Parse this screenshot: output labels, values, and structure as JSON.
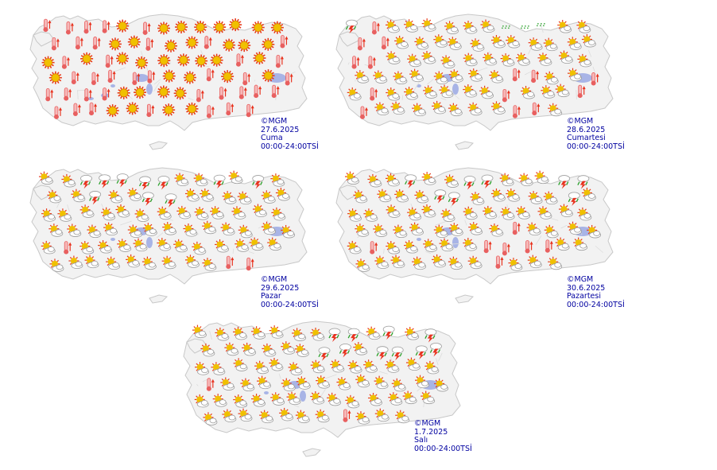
{
  "maps": [
    {
      "copyright": "©MGM",
      "date": "27.6.2025",
      "day": "Cuma",
      "period": "00:00-24:00TSİ",
      "weather_mix": "hot-sunny"
    },
    {
      "copyright": "©MGM",
      "date": "28.6.2025",
      "day": "Cumartesi",
      "period": "00:00-24:00TSİ",
      "weather_mix": "partly-cloudy-hot-storms-west"
    },
    {
      "copyright": "©MGM",
      "date": "29.6.2025",
      "day": "Pazar",
      "period": "00:00-24:00TSİ",
      "weather_mix": "storms-central-partly-cloudy"
    },
    {
      "copyright": "©MGM",
      "date": "30.6.2025",
      "day": "Pazartesi",
      "period": "00:00-24:00TSİ",
      "weather_mix": "partly-cloudy-storms-north"
    },
    {
      "copyright": "©MGM",
      "date": "1.7.2025",
      "day": "Salı",
      "period": "00:00-24:00TSİ",
      "weather_mix": "partly-cloudy-storms-northeast"
    }
  ],
  "icon_names": [
    "sun-icon",
    "partly-cloudy-icon",
    "thermometer-hot-icon",
    "thunderstorm-icon",
    "showers-icon"
  ],
  "colors": {
    "land": "#f2f2f2",
    "border": "#c8c8c8",
    "lake": "#a8b4e6",
    "sun": "#f0c000",
    "sun_ray": "#e83a1a",
    "thermo": "#e86060",
    "storm_red": "#e8321e",
    "rain_green": "#2aa02a",
    "caption": "#0000a0"
  }
}
